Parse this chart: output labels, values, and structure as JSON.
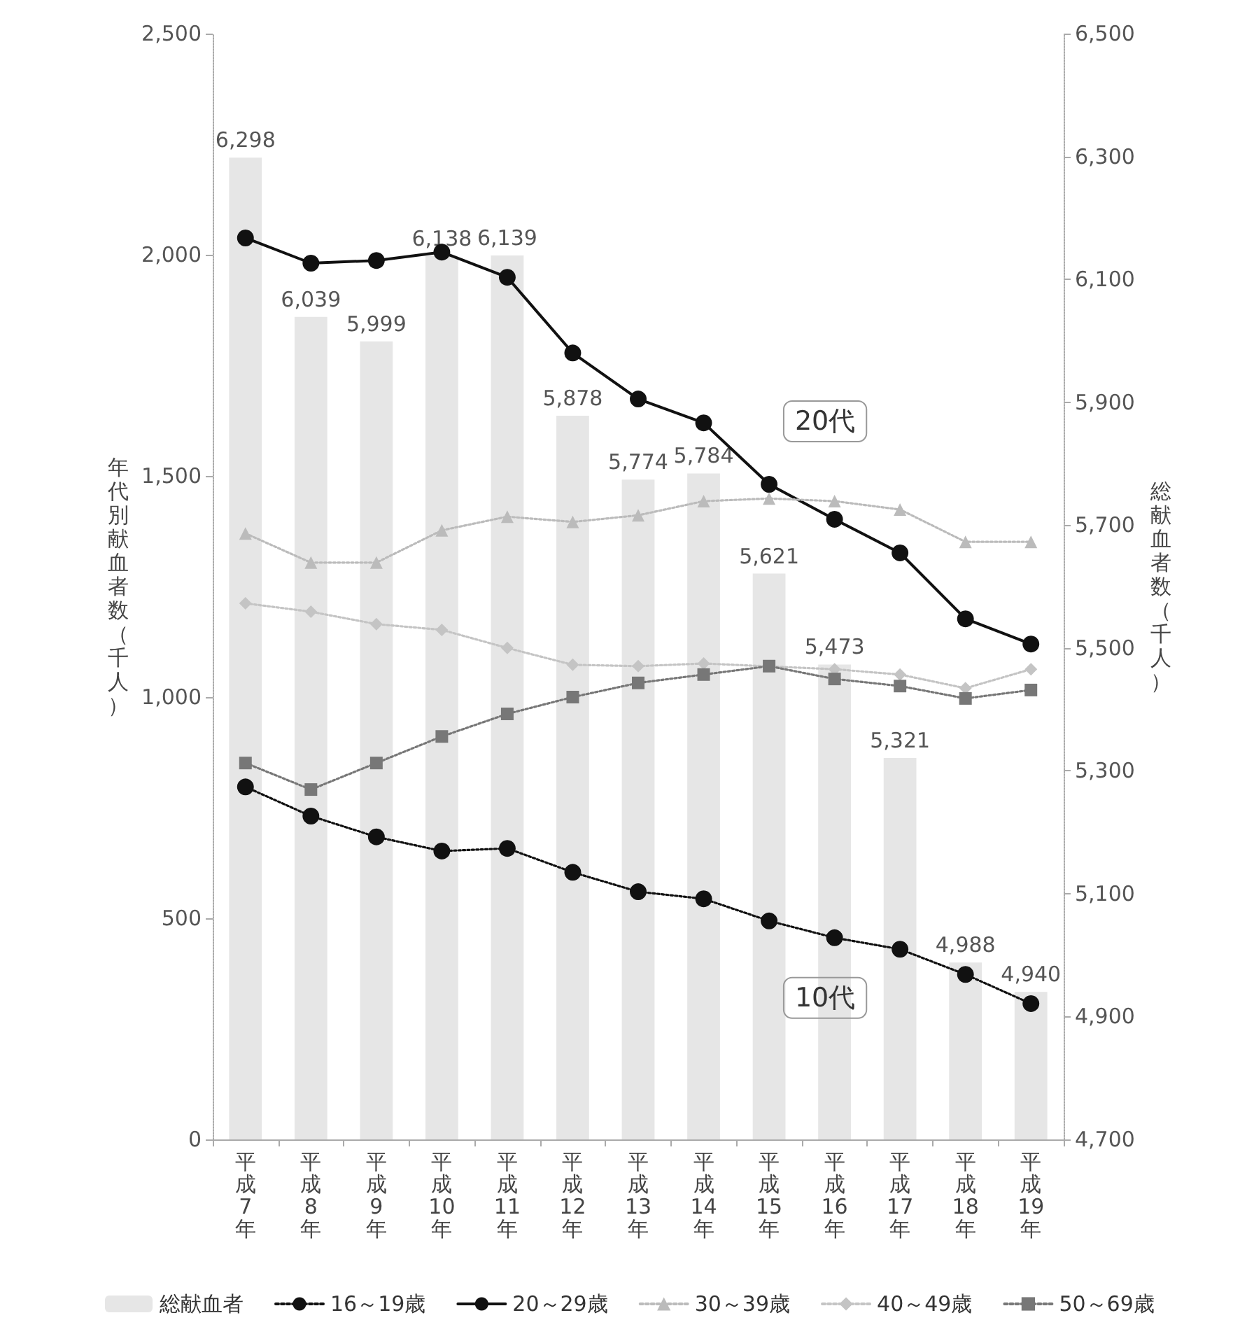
{
  "chart_data": {
    "type": "line",
    "ylabel": "年代別献血者数（千人）",
    "y2label": "総献血者数（千人）",
    "categories": [
      "平成7年",
      "平成8年",
      "平成9年",
      "平成10年",
      "平成11年",
      "平成12年",
      "平成13年",
      "平成14年",
      "平成15年",
      "平成16年",
      "平成17年",
      "平成18年",
      "平成19年"
    ],
    "series": [
      {
        "name": "総献血者",
        "type": "bar",
        "axis": "y2",
        "color": "#e6e6e6",
        "values": [
          6298,
          6039,
          5999,
          6138,
          6139,
          5878,
          5774,
          5784,
          5621,
          5473,
          5321,
          4988,
          4940
        ],
        "value_labels": [
          "6,298",
          "6,039",
          "5,999",
          "6,138",
          "6,139",
          "5,878",
          "5,774",
          "5,784",
          "5,621",
          "5,473",
          "5,321",
          "4,988",
          "4,940"
        ]
      },
      {
        "name": "16～19歳",
        "color": "#111111",
        "marker": "circle",
        "line_style": "dotted",
        "values": [
          797,
          731,
          684,
          652,
          658,
          604,
          560,
          544,
          494,
          456,
          430,
          373,
          307
        ]
      },
      {
        "name": "20～29歳",
        "color": "#111111",
        "marker": "circle",
        "line_style": "solid",
        "values": [
          2038,
          1981,
          1987,
          2006,
          1949,
          1778,
          1674,
          1620,
          1481,
          1402,
          1326,
          1177,
          1120
        ]
      },
      {
        "name": "30～39歳",
        "color": "#bbbbbb",
        "marker": "triangle",
        "line_style": "dotted",
        "values": [
          1370,
          1304,
          1304,
          1377,
          1408,
          1396,
          1411,
          1443,
          1449,
          1443,
          1424,
          1351,
          1351
        ]
      },
      {
        "name": "40～49歳",
        "color": "#c4c4c4",
        "marker": "diamond",
        "line_style": "dotted",
        "values": [
          1212,
          1193,
          1165,
          1152,
          1111,
          1073,
          1070,
          1076,
          null,
          1063,
          1051,
          1020,
          1063
        ]
      },
      {
        "name": "50～69歳",
        "color": "#777777",
        "marker": "square",
        "line_style": "dotted",
        "values": [
          851,
          791,
          851,
          911,
          962,
          1000,
          1032,
          1051,
          1070,
          1041,
          1025,
          997,
          1016
        ]
      }
    ],
    "ylim": [
      0,
      2500
    ],
    "yticks": [
      {
        "value": 0,
        "label": "0"
      },
      {
        "value": 500,
        "label": "500"
      },
      {
        "value": 1000,
        "label": "1,000"
      },
      {
        "value": 1500,
        "label": "1,500"
      },
      {
        "value": 2000,
        "label": "2,000"
      },
      {
        "value": 2500,
        "label": "2,500"
      }
    ],
    "y2lim": [
      4700,
      6500
    ],
    "y2ticks": [
      {
        "value": 4700,
        "label": "4,700"
      },
      {
        "value": 4900,
        "label": "4,900"
      },
      {
        "value": 5100,
        "label": "5,100"
      },
      {
        "value": 5300,
        "label": "5,300"
      },
      {
        "value": 5500,
        "label": "5,500"
      },
      {
        "value": 5700,
        "label": "5,700"
      },
      {
        "value": 5900,
        "label": "5,900"
      },
      {
        "value": 6100,
        "label": "6,100"
      },
      {
        "value": 6300,
        "label": "6,300"
      },
      {
        "value": 6500,
        "label": "6,500"
      }
    ],
    "annotations": [
      {
        "text": "20代",
        "x": "平成15年",
        "y": 1481
      },
      {
        "text": "10代",
        "x": "平成15年",
        "y": 494
      }
    ],
    "legend": "bottom"
  }
}
